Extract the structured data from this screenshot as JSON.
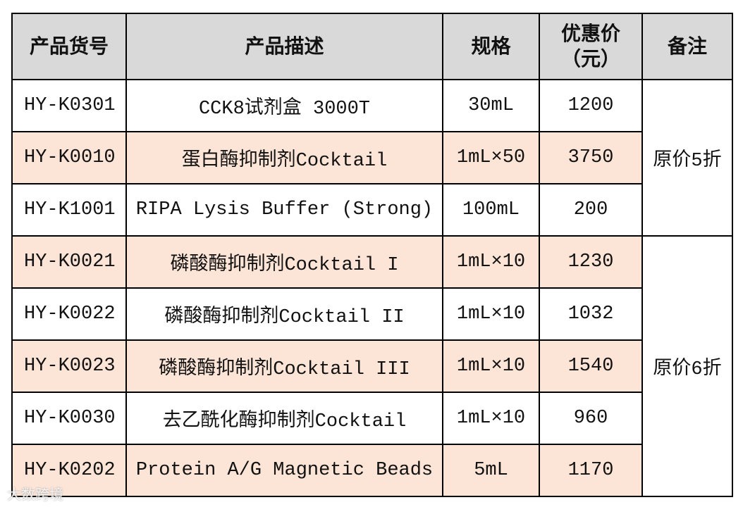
{
  "header": {
    "product_no": "产品货号",
    "description": "产品描述",
    "spec": "规格",
    "price_lines": [
      "优惠价",
      "（元）"
    ],
    "remark": "备注"
  },
  "rows": [
    [
      "HY-K0301",
      "CCK8试剂盒 3000T",
      "30mL",
      "1200"
    ],
    [
      "HY-K0010",
      "蛋白酶抑制剂Cocktail",
      "1mL×50",
      "3750"
    ],
    [
      "HY-K1001",
      "RIPA Lysis Buffer (Strong)",
      "100mL",
      "200"
    ],
    [
      "HY-K0021",
      "磷酸酶抑制剂Cocktail I",
      "1mL×10",
      "1230"
    ],
    [
      "HY-K0022",
      "磷酸酶抑制剂Cocktail II",
      "1mL×10",
      "1032"
    ],
    [
      "HY-K0023",
      "磷酸酶抑制剂Cocktail III",
      "1mL×10",
      "1540"
    ],
    [
      "HY-K0030",
      "去乙酰化酶抑制剂Cocktail",
      "1mL×10",
      "960"
    ],
    [
      "HY-K0202",
      "Protein A/G Magnetic Beads",
      "5mL",
      "1170"
    ]
  ],
  "remarks": [
    {
      "text": "原价5折",
      "rows": 3
    },
    {
      "text": "原价6折",
      "rows": 5
    }
  ],
  "watermark": "大数跨境"
}
